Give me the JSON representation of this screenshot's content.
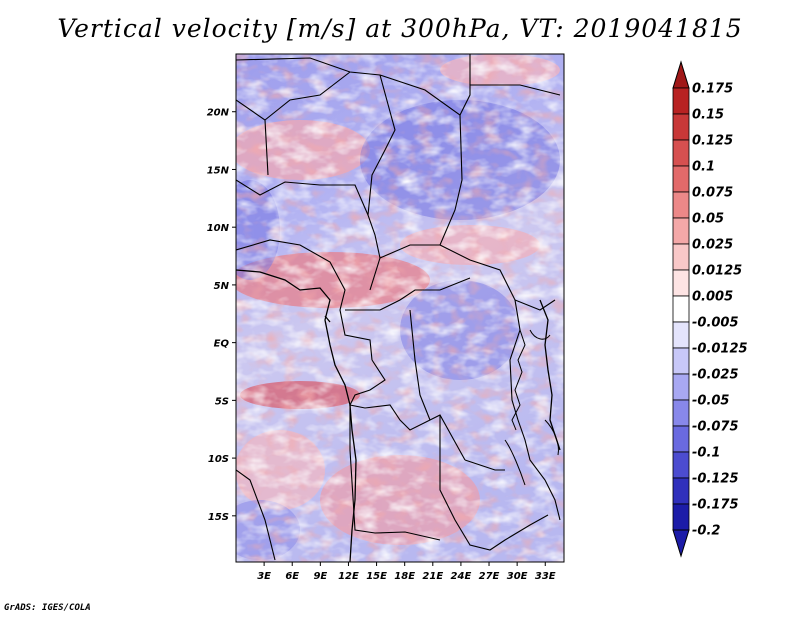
{
  "title": "Vertical velocity [m/s] at 300hPa, VT: 2019041815",
  "credit": "GrADS: IGES/COLA",
  "map": {
    "lon_range": [
      0,
      35
    ],
    "lat_range": [
      -19,
      25
    ],
    "lon_ticks": [
      {
        "lon": 3,
        "label": "3E"
      },
      {
        "lon": 6,
        "label": "6E"
      },
      {
        "lon": 9,
        "label": "9E"
      },
      {
        "lon": 12,
        "label": "12E"
      },
      {
        "lon": 15,
        "label": "15E"
      },
      {
        "lon": 18,
        "label": "18E"
      },
      {
        "lon": 21,
        "label": "21E"
      },
      {
        "lon": 24,
        "label": "24E"
      },
      {
        "lon": 27,
        "label": "27E"
      },
      {
        "lon": 30,
        "label": "30E"
      },
      {
        "lon": 33,
        "label": "33E"
      }
    ],
    "lat_ticks": [
      {
        "lat": 20,
        "label": "20N"
      },
      {
        "lat": 15,
        "label": "15N"
      },
      {
        "lat": 10,
        "label": "10N"
      },
      {
        "lat": 5,
        "label": "5N"
      },
      {
        "lat": 0,
        "label": "EQ"
      },
      {
        "lat": -5,
        "label": "5S"
      },
      {
        "lat": -10,
        "label": "10S"
      },
      {
        "lat": -15,
        "label": "15S"
      }
    ]
  },
  "colorbar": {
    "levels": [
      {
        "label": "0.175",
        "color": "#a01818"
      },
      {
        "label": "0.15",
        "color": "#b82222"
      },
      {
        "label": "0.125",
        "color": "#c83838"
      },
      {
        "label": "0.1",
        "color": "#d65050"
      },
      {
        "label": "0.075",
        "color": "#e26a6a"
      },
      {
        "label": "0.05",
        "color": "#ec8888"
      },
      {
        "label": "0.025",
        "color": "#f4a8a8"
      },
      {
        "label": "0.0125",
        "color": "#f9c8c8"
      },
      {
        "label": "0.005",
        "color": "#fde4e4"
      },
      {
        "label": "-0.005",
        "color": "#ffffff"
      },
      {
        "label": "-0.0125",
        "color": "#e4e4fc"
      },
      {
        "label": "-0.025",
        "color": "#c8c8f8"
      },
      {
        "label": "-0.05",
        "color": "#a8a8f2"
      },
      {
        "label": "-0.075",
        "color": "#8888ea"
      },
      {
        "label": "-0.1",
        "color": "#6a6ae0"
      },
      {
        "label": "-0.125",
        "color": "#4c4cd0"
      },
      {
        "label": "-0.175",
        "color": "#3030bc"
      },
      {
        "label": "-0.2",
        "color": "#1c1ca8"
      }
    ],
    "top_arrow_color": "#a01818",
    "bottom_arrow_color": "#1c1ca8"
  }
}
